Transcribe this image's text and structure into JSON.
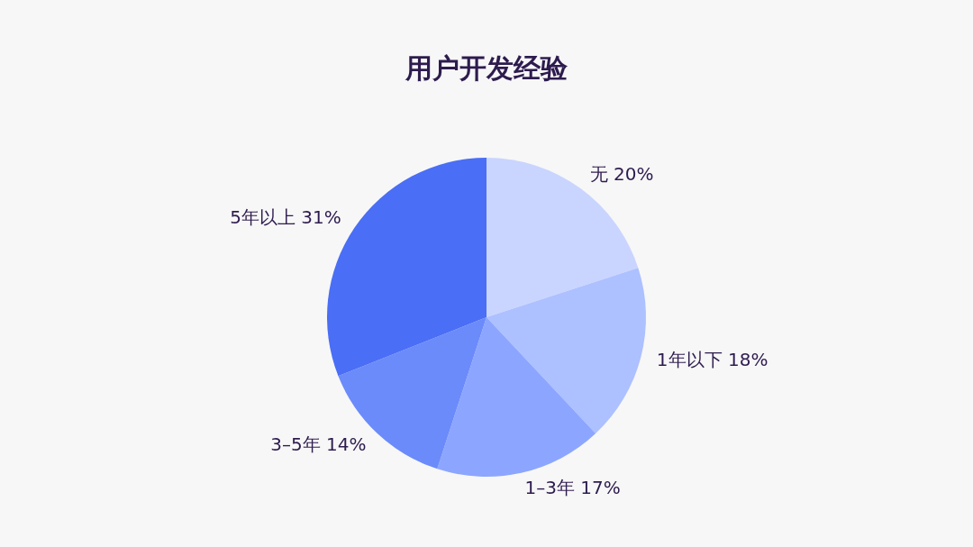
{
  "chart_data": {
    "type": "pie",
    "title": "用户开发经验",
    "categories": [
      "无",
      "1年以下",
      "1–3年",
      "3–5年",
      "5年以上"
    ],
    "values": [
      20,
      18,
      17,
      14,
      31
    ],
    "value_labels": [
      "20%",
      "18%",
      "17%",
      "14%",
      "31%"
    ],
    "colors": [
      "#c9d5ff",
      "#adc0ff",
      "#8ca6ff",
      "#6b8bfb",
      "#4a6ef5"
    ]
  }
}
